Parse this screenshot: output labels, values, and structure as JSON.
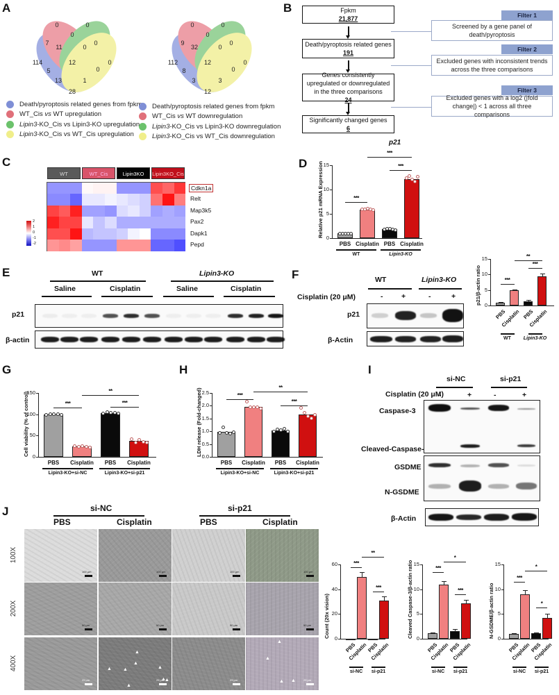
{
  "panels": {
    "A": {
      "label": "A",
      "venn_left": {
        "numbers": [
          {
            "id": "blue_only",
            "v": "114"
          },
          {
            "id": "red_only",
            "v": "0"
          },
          {
            "id": "green_only",
            "v": "0"
          },
          {
            "id": "yellow_only",
            "v": "0"
          },
          {
            "id": "blue_red",
            "v": "7"
          },
          {
            "id": "red_green",
            "v": "0"
          },
          {
            "id": "green_yellow",
            "v": "0"
          },
          {
            "id": "blue_red_green",
            "v": "11"
          },
          {
            "id": "red_green_yellow",
            "v": "0"
          },
          {
            "id": "blue_green",
            "v": "5"
          },
          {
            "id": "all",
            "v": "12"
          },
          {
            "id": "red_yellow",
            "v": "0"
          },
          {
            "id": "blue_green_yellow",
            "v": "13"
          },
          {
            "id": "blue_red_yellow",
            "v": "1"
          },
          {
            "id": "blue_yellow",
            "v": "28"
          }
        ]
      },
      "venn_right": {
        "numbers": [
          {
            "id": "blue_only",
            "v": "112"
          },
          {
            "id": "red_only",
            "v": "0"
          },
          {
            "id": "green_only",
            "v": "0"
          },
          {
            "id": "yellow_only",
            "v": "0"
          },
          {
            "id": "blue_red",
            "v": "9"
          },
          {
            "id": "red_green",
            "v": "0"
          },
          {
            "id": "green_yellow",
            "v": "0"
          },
          {
            "id": "blue_red_green",
            "v": "32"
          },
          {
            "id": "red_green_yellow",
            "v": "0"
          },
          {
            "id": "blue_green",
            "v": "8"
          },
          {
            "id": "all",
            "v": "12"
          },
          {
            "id": "red_yellow",
            "v": "0"
          },
          {
            "id": "blue_green_yellow",
            "v": "3"
          },
          {
            "id": "blue_red_yellow",
            "v": "3"
          },
          {
            "id": "blue_yellow",
            "v": "12"
          }
        ]
      },
      "legend_left": [
        {
          "color": "#7f8fd6",
          "pre": "Death/pyroptosis related genes from fpkm",
          "it": "",
          "post": ""
        },
        {
          "color": "#e0707a",
          "pre": "WT_Cis ",
          "it": "vs",
          "post": " WT upregulation"
        },
        {
          "color": "#6cc26c",
          "pre": "",
          "it": "Lipin3",
          "post": "-KO_Cis vs Lipin3-KO upregulation"
        },
        {
          "color": "#f0ee8a",
          "pre": "",
          "it": "Lipin3",
          "post": "-KO_Cis vs WT_Cis upregulation"
        }
      ],
      "legend_right": [
        {
          "color": "#7f8fd6",
          "pre": "Death/pyroptosis related genes from fpkm",
          "it": "",
          "post": ""
        },
        {
          "color": "#e0707a",
          "pre": "WT_Cis ",
          "it": "vs",
          "post": " WT downregulation"
        },
        {
          "color": "#6cc26c",
          "pre": "",
          "it": "Lipin3",
          "post": "-KO_Cis vs Lipin3-KO downregulation"
        },
        {
          "color": "#f0ee8a",
          "pre": "",
          "it": "Lipin3",
          "post": "-KO_Cis vs WT_Cis downregulation"
        }
      ]
    },
    "B": {
      "label": "B",
      "boxes": [
        {
          "text": "Fpkm",
          "num": "21,877"
        },
        {
          "text": "Death/pyroptosis related genes",
          "num": "191"
        },
        {
          "text": "Genes consistently upregulated or downregulated in the three comparisons",
          "num": "24"
        },
        {
          "text": "Significantly changed genes",
          "num": "6"
        }
      ],
      "filters": [
        {
          "tag": "Filter 1",
          "text": "Screened by a gene panel of death/pyroptosis"
        },
        {
          "tag": "Filter 2",
          "text": "Excluded genes with inconsistent trends across the three comparisons"
        },
        {
          "tag": "Filter 3",
          "text": "Excluded genes with a log2 (|fold change|) < 1 across all three comparisons"
        }
      ]
    },
    "C": {
      "label": "C",
      "groups": [
        {
          "name": "WT",
          "color": "#5a5a5a",
          "text": "#ddd"
        },
        {
          "name": "WT_Cis",
          "color": "#d9546a",
          "text": "#fbe"
        },
        {
          "name": "Lipin3KO",
          "color": "#050505",
          "text": "#fff"
        },
        {
          "name": "Lipin3KO_Cis",
          "color": "#c0101c",
          "text": "#fcc"
        }
      ],
      "genes": [
        "Cdkn1a",
        "Relt",
        "Map3k5",
        "Pax2",
        "Dapk1",
        "Pepd"
      ],
      "highlighted_gene": "Cdkn1a",
      "scale_ticks": [
        "2",
        "1",
        "0",
        "-1",
        "-2"
      ],
      "matrix": [
        [
          -0.9,
          -0.9,
          -0.9,
          0.05,
          0.1,
          0.1,
          -0.9,
          -0.9,
          -0.9,
          1.5,
          1.3,
          1.7
        ],
        [
          -1.0,
          -1.0,
          -1.3,
          -0.2,
          -0.2,
          -0.1,
          -0.2,
          -0.3,
          -0.4,
          1.2,
          2.2,
          1.1
        ],
        [
          1.6,
          1.4,
          1.9,
          -0.8,
          -0.8,
          -0.9,
          -0.3,
          -0.2,
          -0.4,
          -0.8,
          -0.7,
          -0.8
        ],
        [
          1.9,
          1.6,
          1.6,
          -0.2,
          -0.5,
          -0.3,
          -0.7,
          -0.7,
          -0.7,
          -0.7,
          -0.7,
          -0.7
        ],
        [
          1.5,
          1.5,
          2.0,
          -0.6,
          -0.5,
          -0.5,
          -0.4,
          -0.1,
          0.0,
          -1.0,
          -1.0,
          -1.0
        ],
        [
          0.9,
          1.0,
          0.8,
          -0.9,
          -0.9,
          -0.9,
          0.9,
          0.9,
          0.9,
          -1.3,
          -1.3,
          -1.5
        ]
      ]
    },
    "D": {
      "label": "D",
      "title": "p21"
    },
    "E": {
      "label": "E",
      "groups": [
        {
          "name": "WT",
          "italic": false
        },
        {
          "name": "Lipin3-KO",
          "italic": true
        }
      ],
      "treatments": [
        "Saline",
        "Cisplatin",
        "Saline",
        "Cisplatin"
      ],
      "rows": [
        "p21",
        "β-actin"
      ]
    },
    "F": {
      "label": "F",
      "groups": [
        "WT",
        "Lipin3-KO"
      ],
      "treatment_label": "Cisplatin (20 μM)",
      "signs": [
        "-",
        "+",
        "-",
        "+"
      ],
      "rows": [
        "p21",
        "β-Actin"
      ]
    },
    "G": {
      "label": "G"
    },
    "H": {
      "label": "H"
    },
    "I": {
      "label": "I",
      "groups": [
        "si-NC",
        "si-p21"
      ],
      "treatment_label": "Cisplatin (20 μM)",
      "signs": [
        "-",
        "+",
        "-",
        "+"
      ],
      "rows": [
        "Caspase-3",
        "Cleaved-Caspase-3",
        "GSDME",
        "N-GSDME",
        "β-Actin"
      ]
    },
    "J": {
      "label": "J",
      "groups": [
        "si-NC",
        "si-p21"
      ],
      "columns": [
        "PBS",
        "Cisplatin",
        "PBS",
        "Cisplatin"
      ],
      "magnifications": [
        "100X",
        "200X",
        "400X"
      ],
      "scale_bars": [
        "100 μm",
        "50 μm",
        "25 μm"
      ]
    }
  },
  "chart_data": [
    {
      "id": "D",
      "type": "bar",
      "title": "p21",
      "ylabel": "Relative p21 mRNA Expression",
      "ylim": [
        0,
        15
      ],
      "yticks": [
        "0",
        "5",
        "10",
        "15"
      ],
      "categories": [
        "PBS",
        "Cisplatin",
        "PBS",
        "Cisplatin"
      ],
      "groups": [
        {
          "name": "WT",
          "italic": false
        },
        {
          "name": "Lipin3-KO",
          "italic": true
        }
      ],
      "values": [
        1.0,
        5.9,
        1.8,
        12.2
      ],
      "colors": [
        "#a0a0a0",
        "#f08080",
        "#0a0a0a",
        "#d01010"
      ],
      "points": [
        [
          1,
          1,
          1,
          1,
          1
        ],
        [
          5.9,
          6.0,
          6.1,
          5.9,
          5.8
        ],
        [
          1.8,
          2.0,
          1.9,
          1.8,
          1.7
        ],
        [
          12.3,
          12.8,
          12.1,
          11.6,
          12.6
        ]
      ],
      "significance": [
        {
          "from": 0,
          "to": 1,
          "label": "***",
          "level": 7.5
        },
        {
          "from": 2,
          "to": 3,
          "label": "***",
          "level": 14.0
        },
        {
          "from": 1,
          "to": 3,
          "label": "***",
          "level": 16.7
        }
      ]
    },
    {
      "id": "F_quant",
      "type": "bar",
      "ylabel": "p21/β-actin ratio",
      "ylim": [
        0,
        15
      ],
      "yticks": [
        "0",
        "5",
        "10",
        "15"
      ],
      "categories": [
        "PBS",
        "Cisplatin",
        "PBS",
        "Cisplatin"
      ],
      "groups": [
        {
          "name": "WT",
          "italic": false
        },
        {
          "name": "Lipin3-KO",
          "italic": true
        }
      ],
      "values": [
        1.0,
        4.9,
        1.4,
        9.3
      ],
      "errors": [
        0.1,
        0.3,
        0.3,
        0.9
      ],
      "colors": [
        "#a0a0a0",
        "#f08080",
        "#0a0a0a",
        "#d01010"
      ],
      "significance": [
        {
          "from": 0,
          "to": 1,
          "label": "***",
          "level": 7.0
        },
        {
          "from": 2,
          "to": 3,
          "label": "***",
          "level": 12.0
        },
        {
          "from": 1,
          "to": 3,
          "label": "**",
          "level": 14.5
        }
      ]
    },
    {
      "id": "G",
      "type": "bar",
      "ylabel": "Cell viability (% of control)",
      "ylim": [
        0,
        150
      ],
      "yticks": [
        "0",
        "50",
        "100",
        "150"
      ],
      "categories": [
        "PBS",
        "Cisplatin",
        "PBS",
        "Cisplatin"
      ],
      "groups": [
        {
          "name": "Lipin3-KO+si-NC",
          "italic": false
        },
        {
          "name": "Lipin3-KO+si-p21",
          "italic": false
        }
      ],
      "values": [
        100,
        24,
        103,
        37
      ],
      "colors": [
        "#a0a0a0",
        "#f08080",
        "#0a0a0a",
        "#d01010"
      ],
      "points": [
        [
          99,
          100,
          101,
          100,
          98
        ],
        [
          26,
          24,
          25,
          23,
          22
        ],
        [
          102,
          105,
          103,
          104,
          102
        ],
        [
          42,
          33,
          40,
          35,
          34
        ]
      ],
      "significance": [
        {
          "from": 0,
          "to": 1,
          "label": "***",
          "level": 115
        },
        {
          "from": 2,
          "to": 3,
          "label": "***",
          "level": 118
        },
        {
          "from": 1,
          "to": 3,
          "label": "**",
          "level": 145
        }
      ]
    },
    {
      "id": "H",
      "type": "bar",
      "ylabel": "LDH release (Fold-changed)",
      "ylim": [
        0,
        2.5
      ],
      "yticks": [
        "0.0",
        "0.5",
        "1.0",
        "1.5",
        "2.0",
        "2.5"
      ],
      "categories": [
        "PBS",
        "Cisplatin",
        "PBS",
        "Cisplatin"
      ],
      "groups": [
        {
          "name": "Lipin3-KO+si-NC",
          "italic": false
        },
        {
          "name": "Lipin3-KO+si-p21",
          "italic": false
        }
      ],
      "values": [
        0.98,
        1.95,
        1.02,
        1.65
      ],
      "colors": [
        "#a0a0a0",
        "#f08080",
        "#0a0a0a",
        "#d01010"
      ],
      "points": [
        [
          0.95,
          1.15,
          0.95,
          0.92,
          0.97
        ],
        [
          2.17,
          1.93,
          1.95,
          1.95,
          1.9
        ],
        [
          0.98,
          1.08,
          1.05,
          1.1,
          1.0
        ],
        [
          1.92,
          1.72,
          1.6,
          1.5,
          1.65
        ]
      ],
      "significance": [
        {
          "from": 0,
          "to": 1,
          "label": "***",
          "level": 2.25
        },
        {
          "from": 2,
          "to": 3,
          "label": "***",
          "level": 2.0
        },
        {
          "from": 1,
          "to": 3,
          "label": "**",
          "level": 2.55
        }
      ]
    },
    {
      "id": "J_count",
      "type": "bar",
      "ylabel": "Count (20x vision)",
      "ylim": [
        0,
        60
      ],
      "yticks": [
        "0",
        "20",
        "40",
        "60"
      ],
      "categories": [
        "PBS",
        "Cisplatin",
        "PBS",
        "Cisplatin"
      ],
      "groups": [
        {
          "name": "si-NC",
          "italic": false
        },
        {
          "name": "si-p21",
          "italic": false
        }
      ],
      "values": [
        0,
        50,
        0,
        31
      ],
      "errors": [
        0,
        4,
        0,
        3
      ],
      "colors": [
        "#a0a0a0",
        "#f08080",
        "#0a0a0a",
        "#d01010"
      ],
      "significance": [
        {
          "from": 0,
          "to": 1,
          "label": "***",
          "level": 58
        },
        {
          "from": 2,
          "to": 3,
          "label": "***",
          "level": 38
        },
        {
          "from": 1,
          "to": 3,
          "label": "**",
          "level": 66
        }
      ]
    },
    {
      "id": "I_cleaved",
      "type": "bar",
      "ylabel": "Cleaved Caspase-3/β-actin ratio",
      "ylim": [
        0,
        15
      ],
      "yticks": [
        "0",
        "5",
        "10",
        "15"
      ],
      "categories": [
        "PBS",
        "Cisplatin",
        "PBS",
        "Cisplatin"
      ],
      "groups": [
        {
          "name": "si-NC",
          "italic": false
        },
        {
          "name": "si-p21",
          "italic": false
        }
      ],
      "values": [
        1.1,
        11.0,
        1.6,
        7.2
      ],
      "errors": [
        0.2,
        0.7,
        0.3,
        0.6
      ],
      "colors": [
        "#a0a0a0",
        "#f08080",
        "#0a0a0a",
        "#d01010"
      ],
      "significance": [
        {
          "from": 0,
          "to": 1,
          "label": "***",
          "level": 13.5
        },
        {
          "from": 2,
          "to": 3,
          "label": "***",
          "level": 9.0
        },
        {
          "from": 1,
          "to": 3,
          "label": "*",
          "level": 15.5
        }
      ]
    },
    {
      "id": "I_ngsdme",
      "type": "bar",
      "ylabel": "N-GSDME/β-actin ratio",
      "ylim": [
        0,
        15
      ],
      "yticks": [
        "0",
        "5",
        "10",
        "15"
      ],
      "categories": [
        "PBS",
        "Cisplatin",
        "PBS",
        "Cisplatin"
      ],
      "groups": [
        {
          "name": "si-NC",
          "italic": false
        },
        {
          "name": "si-p21",
          "italic": false
        }
      ],
      "values": [
        1.0,
        9.0,
        1.1,
        4.2
      ],
      "errors": [
        0.1,
        0.8,
        0.1,
        0.9
      ],
      "colors": [
        "#a0a0a0",
        "#f08080",
        "#0a0a0a",
        "#d01010"
      ],
      "significance": [
        {
          "from": 0,
          "to": 1,
          "label": "***",
          "level": 11.5
        },
        {
          "from": 2,
          "to": 3,
          "label": "*",
          "level": 6.3
        },
        {
          "from": 1,
          "to": 3,
          "label": "*",
          "level": 13.7
        }
      ]
    }
  ]
}
